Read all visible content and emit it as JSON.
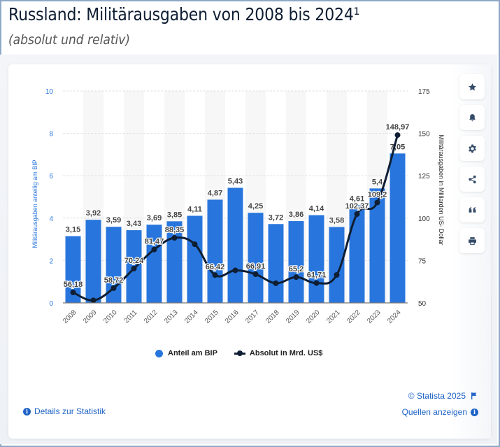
{
  "header": {
    "title": "Russland: Militärausgaben von 2008 bis 2024¹",
    "subtitle": "(absolut und relativ)"
  },
  "toolbar": [
    {
      "name": "favorite-button",
      "icon": "star-icon"
    },
    {
      "name": "notification-button",
      "icon": "bell-icon"
    },
    {
      "name": "settings-button",
      "icon": "gear-icon"
    },
    {
      "name": "share-button",
      "icon": "share-icon"
    },
    {
      "name": "cite-button",
      "icon": "quote-icon"
    },
    {
      "name": "print-button",
      "icon": "printer-icon"
    }
  ],
  "colors": {
    "bar": "#2876dd",
    "line": "#0f1e33",
    "left_axis": "#2876dd",
    "right_axis": "#333333",
    "link": "#1f63c6"
  },
  "chart_data": {
    "type": "bar+line",
    "title": "Russland: Militärausgaben von 2008 bis 2024¹",
    "subtitle": "(absolut und relativ)",
    "categories": [
      "2008",
      "2009",
      "2010",
      "2011",
      "2012",
      "2013",
      "2014",
      "2015",
      "2016",
      "2017",
      "2018",
      "2019",
      "2020",
      "2021",
      "2022",
      "2023",
      "2024"
    ],
    "series": [
      {
        "name": "Anteil am BIP",
        "type": "bar",
        "axis": "left",
        "values": [
          3.15,
          3.92,
          3.59,
          3.43,
          3.69,
          3.85,
          4.11,
          4.87,
          5.43,
          4.25,
          3.72,
          3.86,
          4.14,
          3.58,
          4.61,
          5.4,
          7.05
        ],
        "labels": [
          "3,15",
          "3,92",
          "3,59",
          "3,43",
          "3,69",
          "3,85",
          "4,11",
          "4,87",
          "5,43",
          "4,25",
          "3,72",
          "3,86",
          "4,14",
          "3,58",
          "4,61",
          "5,4",
          "7,05"
        ]
      },
      {
        "name": "Absolut in Mrd. US$",
        "type": "line",
        "axis": "right",
        "values": [
          56.18,
          51.5,
          58.72,
          70.24,
          81.47,
          88.35,
          84.6,
          66.42,
          69.2,
          66.91,
          61.6,
          65.2,
          61.71,
          66.5,
          102.37,
          109.2,
          148.97
        ],
        "labels": [
          "56,18",
          "",
          "58,72",
          "70,24",
          "81,47",
          "88,35",
          "",
          "66,42",
          "",
          "66,91",
          "",
          "65,2",
          "61,71",
          "",
          "102,37",
          "109,2",
          "148,97"
        ]
      }
    ],
    "ylabel": "Militärausgaben anteilig am BIP",
    "y2label": "Militärausgaben in Milliarden US- Dollar",
    "ylim": [
      0,
      10
    ],
    "y2lim": [
      50,
      175
    ],
    "yticks": [
      "0",
      "2",
      "4",
      "6",
      "8",
      "10"
    ],
    "y2ticks": [
      "50",
      "75",
      "100",
      "125",
      "150",
      "175"
    ],
    "grid": true,
    "legend": "bottom-center"
  },
  "legend": {
    "bar_label": "Anteil am BIP",
    "line_label": "Absolut in Mrd. US$"
  },
  "footer": {
    "details_label": "Details zur Statistik",
    "copyright": "© Statista 2025",
    "sources_label": "Quellen anzeigen"
  }
}
